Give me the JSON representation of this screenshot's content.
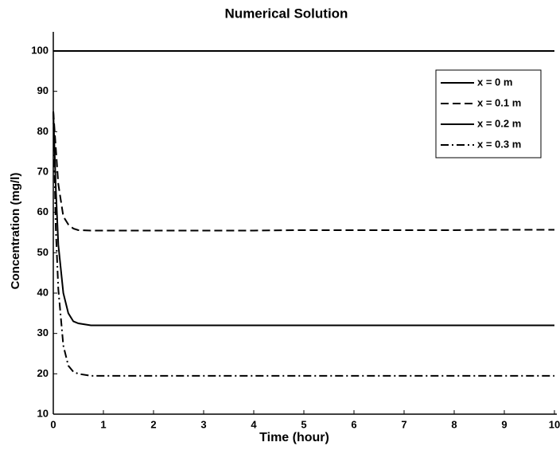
{
  "chart_data": {
    "type": "line",
    "title": "Numerical Solution",
    "x_label": "Time  (hour)",
    "y_label": "Concentration  (mg/l)",
    "x": [
      0,
      0.05,
      0.1,
      0.2,
      0.3,
      0.4,
      0.5,
      0.75,
      1,
      2,
      3,
      4,
      5,
      6,
      7,
      8,
      9,
      10
    ],
    "series": [
      {
        "name": "x = 0 m",
        "color": "#000000",
        "dash": "solid",
        "values": [
          100,
          100,
          100,
          100,
          100,
          100,
          100,
          100,
          100,
          100,
          100,
          100,
          100,
          100,
          100,
          100,
          100,
          100
        ]
      },
      {
        "name": "x = 0.1 m",
        "color": "#000000",
        "dash": "dashed",
        "values": [
          85,
          76,
          67,
          59,
          57,
          56,
          55.6,
          55.5,
          55.5,
          55.5,
          55.5,
          55.5,
          55.6,
          55.6,
          55.6,
          55.6,
          55.7,
          55.7
        ]
      },
      {
        "name": "x = 0.2 m",
        "color": "#000000",
        "dash": "solid",
        "values": [
          85,
          66,
          52,
          40,
          35,
          33,
          32.5,
          32,
          32,
          32,
          32,
          32,
          32,
          32,
          32,
          32,
          32,
          32
        ]
      },
      {
        "name": "x = 0.3 m",
        "color": "#000000",
        "dash": "dashdot",
        "values": [
          85,
          56,
          41,
          27,
          22,
          20.5,
          20,
          19.5,
          19.5,
          19.5,
          19.5,
          19.5,
          19.5,
          19.5,
          19.5,
          19.5,
          19.5,
          19.5
        ]
      }
    ],
    "xlim": [
      0,
      10
    ],
    "xticks": [
      0,
      1,
      2,
      3,
      4,
      5,
      6,
      7,
      8,
      9,
      10
    ],
    "ylim": [
      10,
      100
    ],
    "yticks": [
      10,
      20,
      30,
      40,
      50,
      60,
      70,
      80,
      90,
      100
    ],
    "legend": "upper right"
  }
}
